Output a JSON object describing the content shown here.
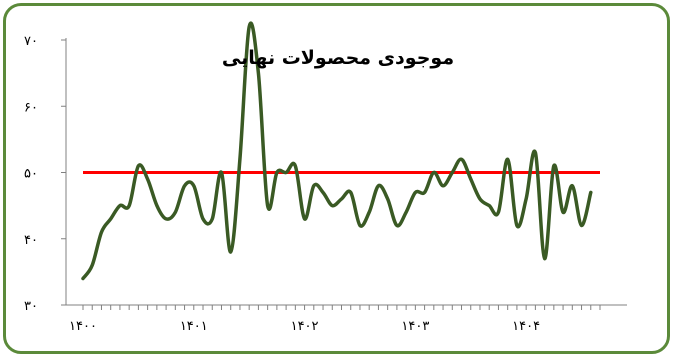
{
  "chart_data": {
    "type": "line",
    "title": "موجودی محصولات نهایی",
    "xlabel": "",
    "ylabel": "",
    "ylim": [
      30,
      70
    ],
    "xlim": [
      0,
      56
    ],
    "y_ticks": [
      30,
      40,
      50,
      60,
      70
    ],
    "y_tick_labels": [
      "۳۰",
      "۴۰",
      "۵۰",
      "۶۰",
      "۷۰"
    ],
    "x_ticks": [
      0,
      12,
      24,
      36,
      48
    ],
    "x_tick_labels": [
      "۱۴۰۰",
      "۱۴۰۱",
      "۱۴۰۲",
      "۱۴۰۳",
      "۱۴۰۴"
    ],
    "grid": false,
    "legend": "none",
    "colors": {
      "series": "#3a5a24",
      "reference": "#ff0000",
      "border": "#5b8a3a"
    },
    "series": [
      {
        "values": [
          34,
          36,
          41,
          43,
          45,
          45,
          51,
          49,
          45,
          43,
          44,
          48,
          48,
          43,
          43,
          50,
          38,
          52,
          72,
          65,
          45,
          50,
          50,
          51,
          43,
          48,
          47,
          45,
          46,
          47,
          42,
          44,
          48,
          46,
          42,
          44,
          47,
          47,
          50,
          48,
          50,
          52,
          49,
          46,
          45,
          44,
          52,
          42,
          46,
          53,
          37,
          51,
          44,
          48,
          42,
          47
        ]
      }
    ],
    "reference_lines": [
      {
        "y": 50
      }
    ]
  }
}
